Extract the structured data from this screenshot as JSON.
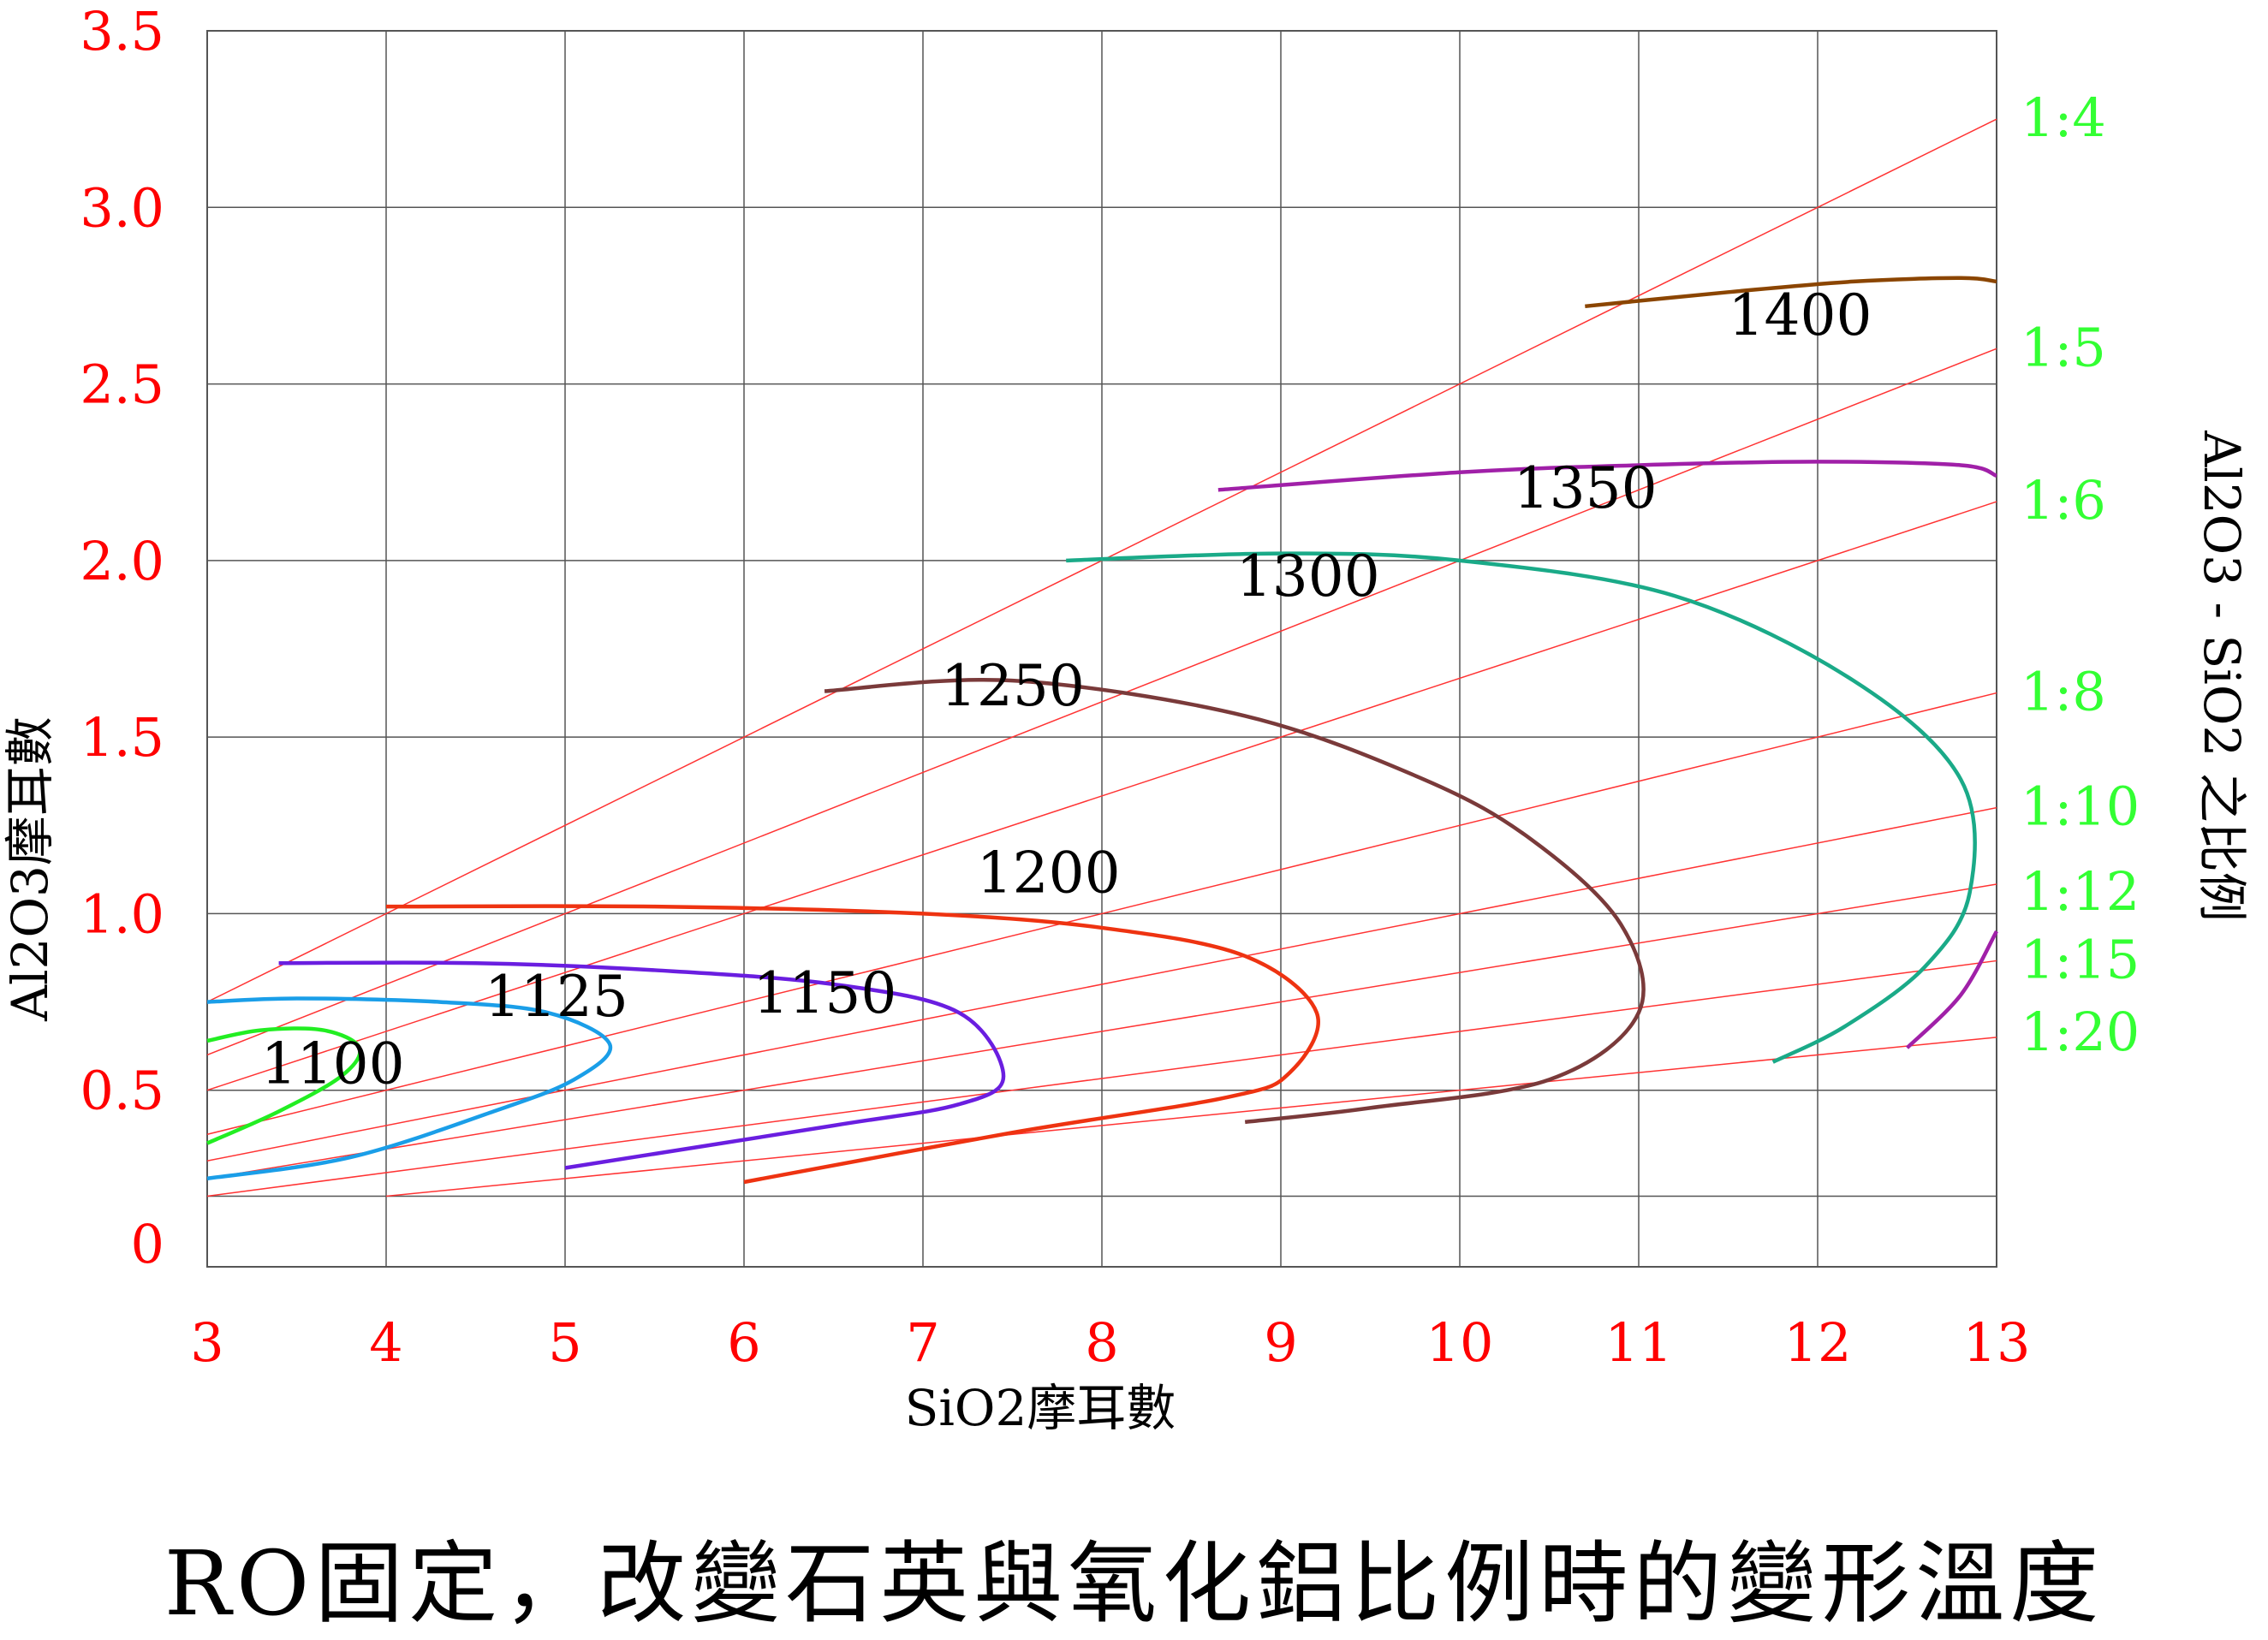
{
  "chart_data": {
    "type": "line",
    "title": "",
    "xlabel": "SiO2摩耳數",
    "ylabel": "Al2O3摩耳數",
    "right_label": "Al2O3 - SiO2 之比例",
    "xlim": [
      3,
      13
    ],
    "ylim": [
      0,
      3.5
    ],
    "grid": true,
    "x_ticks": [
      "3",
      "4",
      "5",
      "6",
      "7",
      "8",
      "9",
      "10",
      "11",
      "12",
      "13"
    ],
    "y_ticks": [
      {
        "label": "0",
        "value": 0
      },
      {
        "label": "0.5",
        "value": 0.5
      },
      {
        "label": "1.0",
        "value": 1.0
      },
      {
        "label": "1.5",
        "value": 1.5
      },
      {
        "label": "2.0",
        "value": 2.0
      },
      {
        "label": "2.5",
        "value": 2.5
      },
      {
        "label": "3.0",
        "value": 3.0
      },
      {
        "label": "3.5",
        "value": 3.5
      }
    ],
    "ratio_lines": [
      {
        "label": "1:4",
        "ratio": 4
      },
      {
        "label": "1:5",
        "ratio": 5
      },
      {
        "label": "1:6",
        "ratio": 6
      },
      {
        "label": "1:8",
        "ratio": 8
      },
      {
        "label": "1:10",
        "ratio": 10
      },
      {
        "label": "1:12",
        "ratio": 12
      },
      {
        "label": "1:15",
        "ratio": 15
      },
      {
        "label": "1:20",
        "ratio": 20
      }
    ],
    "series": [
      {
        "name": "1100",
        "color": "#22ee22",
        "label_at": [
          3.3,
          0.52
        ],
        "points": [
          [
            3.0,
            0.64
          ],
          [
            3.3,
            0.67
          ],
          [
            3.65,
            0.67
          ],
          [
            3.85,
            0.62
          ],
          [
            3.75,
            0.54
          ],
          [
            3.4,
            0.44
          ],
          [
            3.0,
            0.35
          ]
        ]
      },
      {
        "name": "1125",
        "color": "#1a9ee8",
        "label_at": [
          4.55,
          0.71
        ],
        "points": [
          [
            3.0,
            0.75
          ],
          [
            3.5,
            0.76
          ],
          [
            4.3,
            0.75
          ],
          [
            4.9,
            0.72
          ],
          [
            5.25,
            0.63
          ],
          [
            5.05,
            0.53
          ],
          [
            4.6,
            0.44
          ],
          [
            3.8,
            0.31
          ],
          [
            3.0,
            0.25
          ]
        ]
      },
      {
        "name": "1150",
        "color": "#6a1ee0",
        "label_at": [
          6.05,
          0.72
        ],
        "points": [
          [
            3.4,
            0.86
          ],
          [
            4.5,
            0.86
          ],
          [
            5.5,
            0.84
          ],
          [
            6.5,
            0.8
          ],
          [
            7.2,
            0.72
          ],
          [
            7.45,
            0.54
          ],
          [
            7.2,
            0.46
          ],
          [
            6.5,
            0.4
          ],
          [
            5.0,
            0.28
          ]
        ]
      },
      {
        "name": "1200",
        "color": "#ee3311",
        "label_at": [
          7.3,
          1.06
        ],
        "points": [
          [
            4.0,
            1.02
          ],
          [
            5.5,
            1.02
          ],
          [
            7.0,
            1.0
          ],
          [
            8.0,
            0.96
          ],
          [
            8.8,
            0.88
          ],
          [
            9.2,
            0.72
          ],
          [
            9.05,
            0.55
          ],
          [
            8.7,
            0.48
          ],
          [
            7.5,
            0.38
          ],
          [
            6.0,
            0.24
          ]
        ]
      },
      {
        "name": "1250",
        "color": "#7a3a3a",
        "label_at": [
          7.1,
          1.59
        ],
        "points": [
          [
            6.45,
            1.63
          ],
          [
            7.5,
            1.66
          ],
          [
            8.8,
            1.56
          ],
          [
            9.8,
            1.38
          ],
          [
            10.4,
            1.21
          ],
          [
            10.9,
            0.97
          ],
          [
            11.0,
            0.72
          ],
          [
            10.5,
            0.53
          ],
          [
            9.5,
            0.45
          ],
          [
            8.8,
            0.41
          ]
        ]
      },
      {
        "name": "1300",
        "color": "#1aaa88",
        "label_at": [
          8.75,
          1.9
        ],
        "points": [
          [
            7.8,
            2.0
          ],
          [
            9.0,
            2.02
          ],
          [
            10.0,
            2.0
          ],
          [
            11.2,
            1.9
          ],
          [
            12.2,
            1.66
          ],
          [
            12.8,
            1.38
          ],
          [
            12.85,
            1.06
          ],
          [
            12.6,
            0.85
          ],
          [
            12.15,
            0.68
          ],
          [
            11.75,
            0.58
          ]
        ]
      },
      {
        "name": "1350",
        "color": "#a020a8",
        "label_at": [
          10.3,
          2.15
        ],
        "points": [
          [
            8.65,
            2.2
          ],
          [
            10.0,
            2.25
          ],
          [
            11.0,
            2.27
          ],
          [
            12.0,
            2.28
          ],
          [
            12.8,
            2.27
          ],
          [
            13.0,
            2.24
          ]
        ]
      },
      {
        "name": "1350 (lower branch)",
        "color": "#a020a8",
        "points": [
          [
            12.5,
            0.62
          ],
          [
            12.8,
            0.77
          ],
          [
            13.0,
            0.95
          ]
        ]
      },
      {
        "name": "1400",
        "color": "#8b4500",
        "label_at": [
          11.5,
          2.64
        ],
        "points": [
          [
            10.7,
            2.72
          ],
          [
            11.5,
            2.76
          ],
          [
            12.2,
            2.79
          ],
          [
            12.8,
            2.8
          ],
          [
            13.0,
            2.79
          ]
        ]
      }
    ]
  },
  "caption": "RO固定，改變石英與氧化鋁比例時的變形溫度"
}
